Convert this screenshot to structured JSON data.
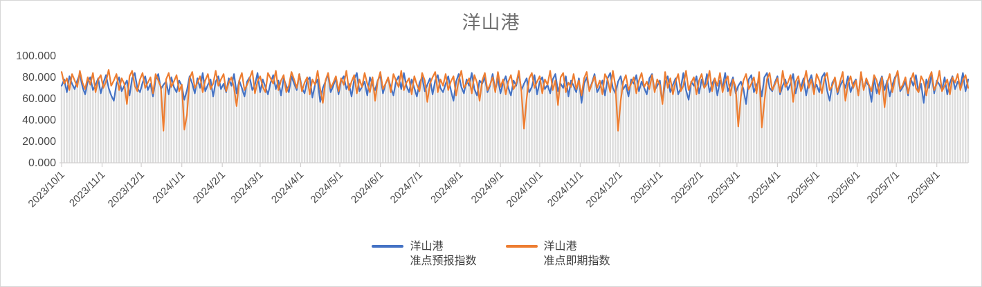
{
  "chart_data": {
    "type": "line",
    "title": "洋山港",
    "xlabel": "",
    "ylabel": "",
    "ylim": [
      0,
      100
    ],
    "grid": false,
    "legend_position": "bottom",
    "axis_color": "#d2d0d0",
    "x_start": "2023/10/1",
    "x_step_days": 2,
    "x_tick_labels": [
      "2023/10/1",
      "2023/11/1",
      "2023/12/1",
      "2024/1/1",
      "2024/2/1",
      "2024/3/1",
      "2024/4/1",
      "2024/5/1",
      "2024/6/1",
      "2024/7/1",
      "2024/8/1",
      "2024/9/1",
      "2024/10/1",
      "2024/11/1",
      "2024/12/1",
      "2025/1/1",
      "2025/2/1",
      "2025/3/1",
      "2025/4/1",
      "2025/5/1",
      "2025/6/1",
      "2025/7/1",
      "2025/8/1"
    ],
    "y_tick_labels": [
      "0.000",
      "20.000",
      "40.000",
      "60.000",
      "80.000",
      "100.000"
    ],
    "background_bars": {
      "color": "#dcdcdc",
      "follows": "series 0 (drop lines under lines)"
    },
    "series": [
      {
        "name": "洋山港准点预报指数",
        "color": "#4472C4",
        "values": [
          72,
          78,
          66,
          81,
          74,
          69,
          77,
          83,
          71,
          64,
          76,
          80,
          68,
          73,
          79,
          65,
          75,
          82,
          70,
          63,
          58,
          74,
          80,
          67,
          72,
          77,
          63,
          79,
          84,
          70,
          66,
          75,
          81,
          68,
          74,
          62,
          78,
          83,
          69,
          73,
          76,
          64,
          80,
          71,
          66,
          77,
          72,
          59,
          68,
          81,
          74,
          65,
          79,
          70,
          84,
          67,
          73,
          78,
          62,
          76,
          81,
          69,
          74,
          66,
          79,
          72,
          83,
          65,
          77,
          70,
          62,
          76,
          80,
          68,
          73,
          84,
          66,
          78,
          71,
          64,
          75,
          82,
          69,
          77,
          63,
          79,
          72,
          66,
          81,
          74,
          68,
          83,
          70,
          65,
          77,
          80,
          61,
          73,
          78,
          57,
          70,
          76,
          83,
          66,
          72,
          79,
          64,
          77,
          81,
          69,
          74,
          62,
          78,
          84,
          67,
          71,
          76,
          63,
          80,
          73,
          68,
          77,
          82,
          65,
          74,
          79,
          71,
          63,
          76,
          81,
          69,
          84,
          72,
          66,
          78,
          70,
          62,
          75,
          80,
          67,
          73,
          79,
          64,
          77,
          82,
          70,
          66,
          74,
          81,
          68,
          58,
          76,
          83,
          71,
          65,
          78,
          72,
          84,
          69,
          63,
          77,
          74,
          80,
          66,
          72,
          83,
          68,
          79,
          65,
          75,
          81,
          70,
          63,
          77,
          72,
          84,
          68,
          74,
          79,
          66,
          71,
          82,
          64,
          76,
          80,
          69,
          73,
          65,
          78,
          83,
          67,
          74,
          70,
          81,
          62,
          77,
          72,
          66,
          79,
          56,
          74,
          80,
          68,
          75,
          83,
          66,
          71,
          77,
          63,
          79,
          84,
          70,
          65,
          76,
          81,
          69,
          73,
          62,
          78,
          74,
          82,
          67,
          76,
          70,
          64,
          79,
          83,
          68,
          72,
          77,
          57,
          75,
          81,
          66,
          73,
          79,
          64,
          70,
          84,
          68,
          59,
          76,
          72,
          81,
          65,
          78,
          70,
          83,
          66,
          74,
          79,
          63,
          77,
          71,
          84,
          67,
          73,
          80,
          65,
          72,
          76,
          69,
          55,
          78,
          82,
          66,
          73,
          77,
          62,
          80,
          84,
          70,
          67,
          75,
          81,
          64,
          72,
          78,
          68,
          74,
          83,
          65,
          77,
          71,
          79,
          63,
          76,
          82,
          69,
          73,
          66,
          80,
          84,
          68,
          58,
          75,
          79,
          64,
          72,
          77,
          70,
          81,
          66,
          74,
          78,
          63,
          83,
          69,
          76,
          72,
          57,
          79,
          65,
          74,
          81,
          68,
          77,
          62,
          73,
          80,
          84,
          67,
          71,
          76,
          63,
          79,
          72,
          82,
          66,
          74,
          56,
          78,
          70,
          83,
          65,
          77,
          73,
          68,
          80,
          64,
          75,
          81,
          69,
          76,
          72,
          84,
          67,
          78
        ]
      },
      {
        "name": "洋山港准点即期指数",
        "color": "#ED7D31",
        "values": [
          85,
          74,
          79,
          68,
          83,
          77,
          71,
          86,
          75,
          69,
          80,
          73,
          84,
          66,
          78,
          82,
          70,
          76,
          87,
          72,
          77,
          83,
          68,
          79,
          74,
          55,
          81,
          86,
          72,
          67,
          78,
          84,
          70,
          75,
          80,
          65,
          83,
          77,
          71,
          30,
          78,
          84,
          71,
          76,
          82,
          67,
          73,
          31,
          45,
          79,
          85,
          70,
          75,
          81,
          66,
          77,
          83,
          69,
          74,
          86,
          72,
          78,
          83,
          67,
          75,
          80,
          70,
          53,
          77,
          84,
          68,
          73,
          79,
          86,
          65,
          76,
          81,
          71,
          66,
          84,
          79,
          74,
          86,
          68,
          77,
          82,
          66,
          72,
          85,
          78,
          70,
          83,
          67,
          75,
          80,
          64,
          78,
          73,
          86,
          69,
          56,
          77,
          84,
          70,
          75,
          81,
          67,
          79,
          73,
          86,
          68,
          76,
          82,
          65,
          78,
          71,
          84,
          74,
          66,
          80,
          58,
          76,
          85,
          69,
          74,
          80,
          66,
          83,
          77,
          71,
          86,
          68,
          75,
          79,
          64,
          81,
          73,
          67,
          84,
          77,
          57,
          74,
          80,
          85,
          66,
          78,
          72,
          83,
          68,
          76,
          81,
          63,
          77,
          86,
          70,
          74,
          79,
          65,
          82,
          75,
          58,
          77,
          84,
          68,
          73,
          80,
          66,
          85,
          71,
          78,
          64,
          76,
          82,
          69,
          74,
          86,
          67,
          32,
          60,
          79,
          84,
          70,
          76,
          81,
          65,
          78,
          73,
          86,
          68,
          77,
          54,
          80,
          84,
          66,
          75,
          71,
          83,
          69,
          77,
          63,
          79,
          85,
          67,
          74,
          81,
          70,
          77,
          64,
          83,
          78,
          66,
          86,
          72,
          30,
          58,
          76,
          82,
          68,
          74,
          80,
          65,
          77,
          84,
          71,
          76,
          69,
          82,
          66,
          78,
          73,
          55,
          85,
          70,
          79,
          64,
          76,
          83,
          67,
          72,
          86,
          68,
          75,
          80,
          64,
          77,
          83,
          70,
          74,
          86,
          67,
          79,
          72,
          84,
          66,
          76,
          81,
          63,
          78,
          71,
          34,
          62,
          77,
          83,
          69,
          74,
          80,
          65,
          85,
          33,
          57,
          78,
          84,
          68,
          73,
          79,
          66,
          86,
          71,
          75,
          82,
          57,
          76,
          81,
          67,
          74,
          86,
          70,
          78,
          64,
          83,
          77,
          65,
          79,
          84,
          68,
          72,
          80,
          66,
          76,
          85,
          58,
          74,
          81,
          70,
          77,
          63,
          85,
          68,
          79,
          73,
          67,
          82,
          77,
          64,
          80,
          52,
          75,
          83,
          66,
          78,
          86,
          69,
          73,
          80,
          65,
          77,
          84,
          70,
          66,
          81,
          76,
          63,
          79,
          85,
          68,
          74,
          86,
          67,
          72,
          78,
          64,
          80,
          75,
          83,
          68,
          77,
          82,
          70
        ]
      }
    ]
  },
  "legend": {
    "entries": [
      {
        "line1": "洋山港",
        "line2": "准点预报指数",
        "color": "#4472C4"
      },
      {
        "line1": "洋山港",
        "line2": "准点即期指数",
        "color": "#ED7D31"
      }
    ]
  }
}
